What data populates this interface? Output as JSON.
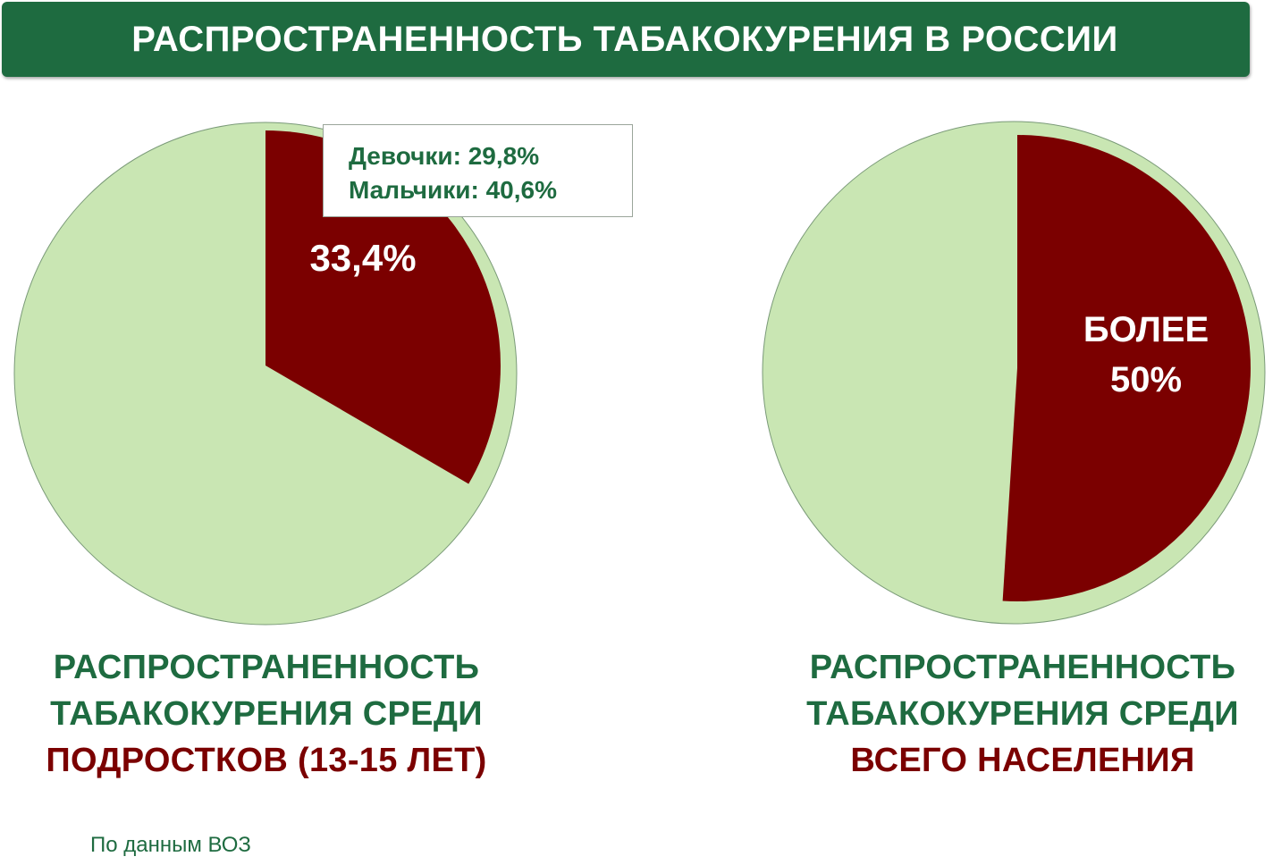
{
  "title": "РАСПРОСТРАНЕННОСТЬ ТАБАКОКУРЕНИЯ В РОССИИ",
  "colors": {
    "title_bg": "#1e6b40",
    "light_green": "#c9e6b3",
    "dark_red": "#7b0000",
    "green_text": "#1e6b40"
  },
  "chart_data": [
    {
      "type": "pie",
      "slices": [
        {
          "value": 33.4,
          "label": "33,4%",
          "color": "#7b0000"
        },
        {
          "value": 66.6,
          "label": "",
          "color": "#c9e6b3"
        }
      ],
      "callout": {
        "girls": "Девочки: 29,8%",
        "boys": "Мальчики: 40,6%"
      },
      "caption": {
        "line1": "РАСПРОСТРАНЕННОСТЬ",
        "line2": "ТАБАКОКУРЕНИЯ СРЕДИ",
        "line3": "ПОДРОСТКОВ (13-15 ЛЕТ)"
      }
    },
    {
      "type": "pie",
      "slices": [
        {
          "value": 51,
          "label_line1": "БОЛЕЕ",
          "label_line2": "50%",
          "color": "#7b0000"
        },
        {
          "value": 49,
          "label": "",
          "color": "#c9e6b3"
        }
      ],
      "caption": {
        "line1": "РАСПРОСТРАНЕННОСТЬ",
        "line2": "ТАБАКОКУРЕНИЯ СРЕДИ",
        "line3": "ВСЕГО НАСЕЛЕНИЯ"
      }
    }
  ],
  "source": "По данным ВОЗ"
}
